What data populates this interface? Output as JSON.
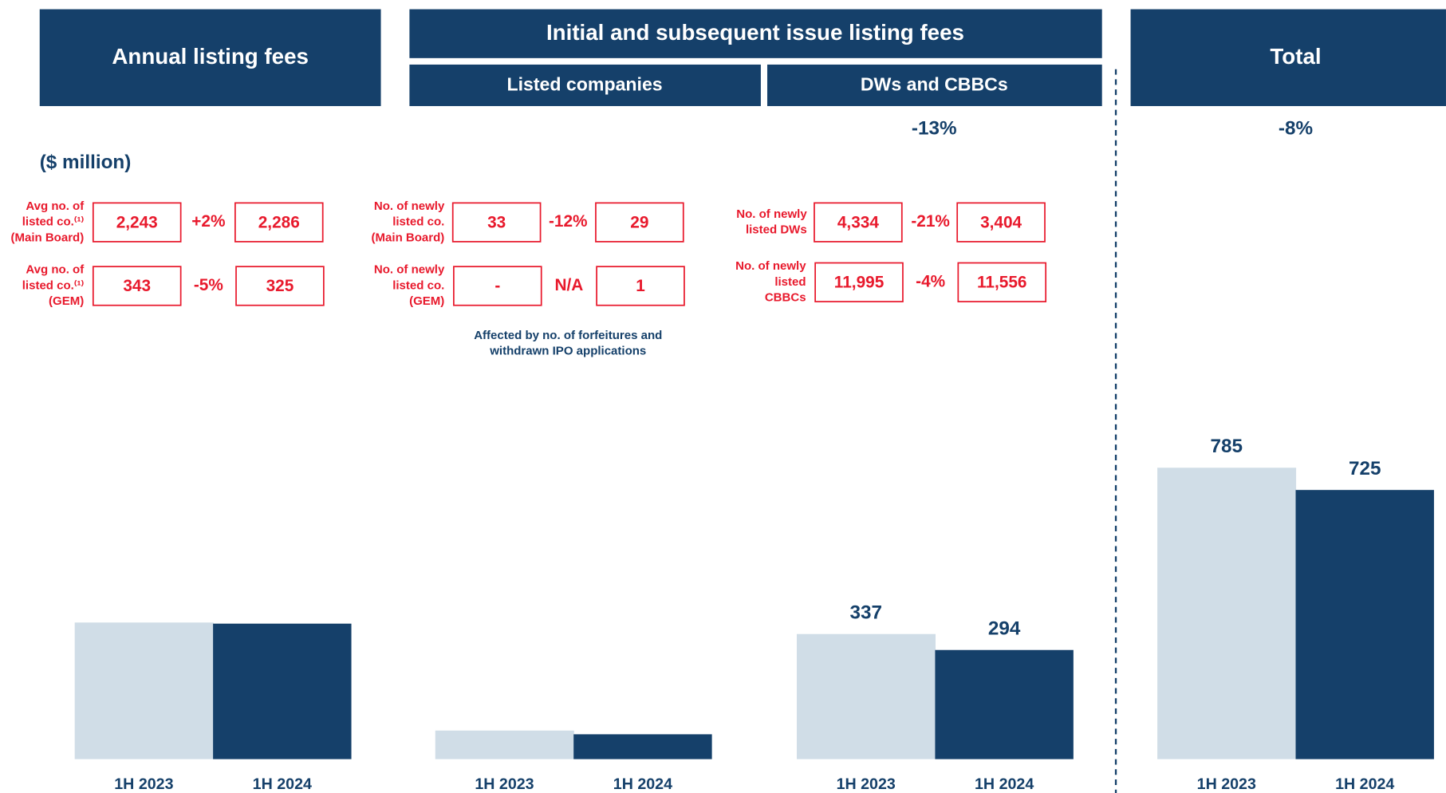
{
  "headers": {
    "annual": "Annual listing fees",
    "initial": "Initial and subsequent issue listing fees",
    "listed": "Listed companies",
    "dws": "DWs and CBBCs",
    "total": "Total"
  },
  "unit": "($ million)",
  "changes": {
    "dws": "-13%",
    "total": "-8%"
  },
  "kpis": [
    {
      "label": [
        "Avg no. of",
        "listed co.⁽¹⁾",
        "(Main Board)"
      ],
      "before": "2,243",
      "change": "+2%",
      "after": "2,286"
    },
    {
      "label": [
        "Avg no. of",
        "listed co.⁽¹⁾",
        "(GEM)"
      ],
      "before": "343",
      "change": "-5%",
      "after": "325"
    },
    {
      "label": [
        "No. of newly",
        "listed co.",
        "(Main Board)"
      ],
      "before": "33",
      "change": "-12%",
      "after": "29"
    },
    {
      "label": [
        "No. of newly",
        "listed co.",
        "(GEM)"
      ],
      "before": "-",
      "change": "N/A",
      "after": "1"
    },
    {
      "label": [
        "No. of newly",
        "listed DWs"
      ],
      "before": "4,334",
      "change": "-21%",
      "after": "3,404"
    },
    {
      "label": [
        "No. of newly",
        "listed",
        "CBBCs"
      ],
      "before": "11,995",
      "change": "-4%",
      "after": "11,556"
    }
  ],
  "note": [
    "Affected by no. of forfeitures and",
    "withdrawn IPO applications"
  ],
  "chart_data": [
    {
      "type": "bar",
      "categories": [
        "1H 2023",
        "1H 2024"
      ],
      "values": [
        368,
        365
      ],
      "colors": [
        "#d0dde7",
        "#15406a"
      ],
      "ylim": [
        0,
        800
      ],
      "data_labels": false
    },
    {
      "type": "bar",
      "categories": [
        "1H 2023",
        "1H 2024"
      ],
      "values": [
        77,
        67
      ],
      "colors": [
        "#d0dde7",
        "#15406a"
      ],
      "ylim": [
        0,
        800
      ],
      "data_labels": false
    },
    {
      "type": "bar",
      "categories": [
        "1H 2023",
        "1H 2024"
      ],
      "values": [
        337,
        294
      ],
      "colors": [
        "#d0dde7",
        "#15406a"
      ],
      "ylim": [
        0,
        800
      ],
      "data_labels": true
    },
    {
      "type": "bar",
      "categories": [
        "1H 2023",
        "1H 2024"
      ],
      "values": [
        785,
        725
      ],
      "colors": [
        "#d0dde7",
        "#15406a"
      ],
      "ylim": [
        0,
        800
      ],
      "data_labels": true
    }
  ]
}
